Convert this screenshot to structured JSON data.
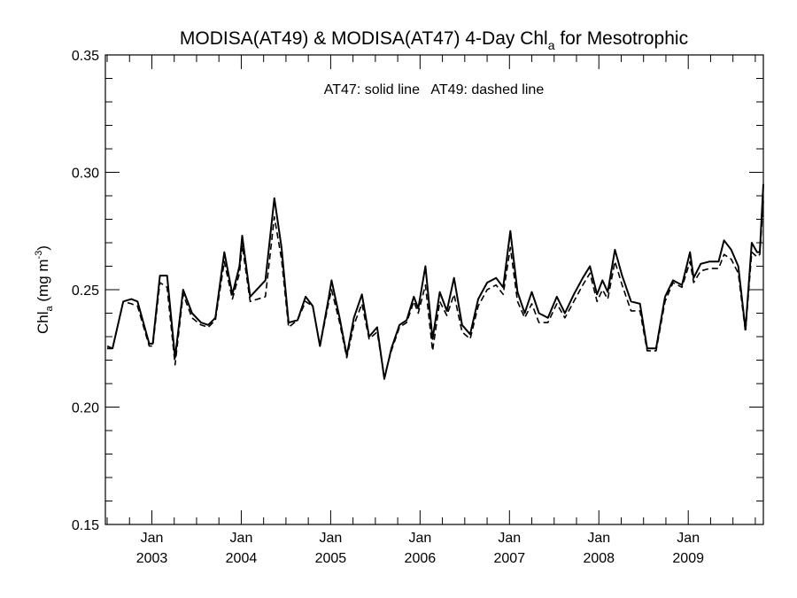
{
  "chart_data": {
    "type": "line",
    "title": {
      "prefix": "MODISA(AT49) & MODISA(AT47) 4-Day Chl",
      "subscript": "a",
      "suffix": " for Mesotrophic"
    },
    "annotation": "AT47: solid line   AT49: dashed line",
    "ylabel": {
      "prefix": "Chl",
      "subscript": "a",
      "unit_text": " (mg m",
      "superscript": "-3",
      "close": ")"
    },
    "ylim": [
      0.15,
      0.35
    ],
    "xlim": [
      2002.48,
      2009.84
    ],
    "y_ticks": [
      "0.15",
      "0.20",
      "0.25",
      "0.30",
      "0.35"
    ],
    "x_ticks": [
      {
        "x": 2003.0,
        "month": "Jan",
        "year": "2003"
      },
      {
        "x": 2004.0,
        "month": "Jan",
        "year": "2004"
      },
      {
        "x": 2005.0,
        "month": "Jan",
        "year": "2005"
      },
      {
        "x": 2006.0,
        "month": "Jan",
        "year": "2006"
      },
      {
        "x": 2007.0,
        "month": "Jan",
        "year": "2007"
      },
      {
        "x": 2008.0,
        "month": "Jan",
        "year": "2008"
      },
      {
        "x": 2009.0,
        "month": "Jan",
        "year": "2009"
      }
    ],
    "grid": false,
    "series": [
      {
        "name": "AT47",
        "style": "solid",
        "points": [
          [
            2002.5,
            0.225
          ],
          [
            2002.56,
            0.225
          ],
          [
            2002.68,
            0.245
          ],
          [
            2002.77,
            0.246
          ],
          [
            2002.84,
            0.245
          ],
          [
            2002.97,
            0.227
          ],
          [
            2003.01,
            0.227
          ],
          [
            2003.09,
            0.256
          ],
          [
            2003.17,
            0.256
          ],
          [
            2003.26,
            0.221
          ],
          [
            2003.35,
            0.25
          ],
          [
            2003.45,
            0.24
          ],
          [
            2003.55,
            0.236
          ],
          [
            2003.63,
            0.235
          ],
          [
            2003.71,
            0.238
          ],
          [
            2003.81,
            0.266
          ],
          [
            2003.9,
            0.248
          ],
          [
            2003.98,
            0.26
          ],
          [
            2004.01,
            0.273
          ],
          [
            2004.1,
            0.247
          ],
          [
            2004.27,
            0.254
          ],
          [
            2004.37,
            0.289
          ],
          [
            2004.45,
            0.268
          ],
          [
            2004.53,
            0.236
          ],
          [
            2004.63,
            0.237
          ],
          [
            2004.72,
            0.247
          ],
          [
            2004.8,
            0.243
          ],
          [
            2004.88,
            0.226
          ],
          [
            2004.98,
            0.247
          ],
          [
            2005.01,
            0.254
          ],
          [
            2005.1,
            0.238
          ],
          [
            2005.18,
            0.222
          ],
          [
            2005.26,
            0.238
          ],
          [
            2005.35,
            0.248
          ],
          [
            2005.43,
            0.23
          ],
          [
            2005.52,
            0.234
          ],
          [
            2005.6,
            0.212
          ],
          [
            2005.68,
            0.225
          ],
          [
            2005.77,
            0.235
          ],
          [
            2005.85,
            0.237
          ],
          [
            2005.93,
            0.247
          ],
          [
            2005.98,
            0.242
          ],
          [
            2006.06,
            0.26
          ],
          [
            2006.14,
            0.229
          ],
          [
            2006.22,
            0.249
          ],
          [
            2006.3,
            0.241
          ],
          [
            2006.38,
            0.255
          ],
          [
            2006.47,
            0.235
          ],
          [
            2006.56,
            0.231
          ],
          [
            2006.65,
            0.246
          ],
          [
            2006.75,
            0.253
          ],
          [
            2006.85,
            0.255
          ],
          [
            2006.93,
            0.251
          ],
          [
            2007.01,
            0.275
          ],
          [
            2007.09,
            0.249
          ],
          [
            2007.17,
            0.24
          ],
          [
            2007.25,
            0.249
          ],
          [
            2007.33,
            0.24
          ],
          [
            2007.43,
            0.238
          ],
          [
            2007.53,
            0.247
          ],
          [
            2007.62,
            0.24
          ],
          [
            2007.72,
            0.248
          ],
          [
            2007.82,
            0.255
          ],
          [
            2007.9,
            0.26
          ],
          [
            2007.98,
            0.248
          ],
          [
            2008.04,
            0.254
          ],
          [
            2008.1,
            0.249
          ],
          [
            2008.18,
            0.267
          ],
          [
            2008.26,
            0.256
          ],
          [
            2008.36,
            0.245
          ],
          [
            2008.46,
            0.244
          ],
          [
            2008.54,
            0.225
          ],
          [
            2008.64,
            0.225
          ],
          [
            2008.74,
            0.247
          ],
          [
            2008.83,
            0.254
          ],
          [
            2008.93,
            0.252
          ],
          [
            2009.02,
            0.266
          ],
          [
            2009.06,
            0.255
          ],
          [
            2009.14,
            0.261
          ],
          [
            2009.24,
            0.262
          ],
          [
            2009.34,
            0.262
          ],
          [
            2009.4,
            0.271
          ],
          [
            2009.48,
            0.267
          ],
          [
            2009.56,
            0.26
          ],
          [
            2009.64,
            0.233
          ],
          [
            2009.71,
            0.27
          ],
          [
            2009.77,
            0.266
          ],
          [
            2009.8,
            0.266
          ],
          [
            2009.84,
            0.295
          ]
        ]
      },
      {
        "name": "AT49",
        "style": "dashed",
        "points": [
          [
            2002.5,
            0.226
          ],
          [
            2002.56,
            0.225
          ],
          [
            2002.68,
            0.245
          ],
          [
            2002.77,
            0.244
          ],
          [
            2002.84,
            0.243
          ],
          [
            2002.97,
            0.226
          ],
          [
            2003.01,
            0.226
          ],
          [
            2003.09,
            0.253
          ],
          [
            2003.17,
            0.251
          ],
          [
            2003.26,
            0.218
          ],
          [
            2003.35,
            0.248
          ],
          [
            2003.45,
            0.238
          ],
          [
            2003.55,
            0.235
          ],
          [
            2003.63,
            0.234
          ],
          [
            2003.71,
            0.237
          ],
          [
            2003.81,
            0.262
          ],
          [
            2003.9,
            0.246
          ],
          [
            2003.98,
            0.257
          ],
          [
            2004.01,
            0.269
          ],
          [
            2004.1,
            0.245
          ],
          [
            2004.27,
            0.247
          ],
          [
            2004.37,
            0.281
          ],
          [
            2004.45,
            0.263
          ],
          [
            2004.53,
            0.234
          ],
          [
            2004.63,
            0.237
          ],
          [
            2004.72,
            0.245
          ],
          [
            2004.8,
            0.243
          ],
          [
            2004.88,
            0.226
          ],
          [
            2004.98,
            0.245
          ],
          [
            2005.01,
            0.25
          ],
          [
            2005.1,
            0.236
          ],
          [
            2005.18,
            0.221
          ],
          [
            2005.26,
            0.235
          ],
          [
            2005.35,
            0.244
          ],
          [
            2005.43,
            0.229
          ],
          [
            2005.52,
            0.232
          ],
          [
            2005.6,
            0.213
          ],
          [
            2005.68,
            0.224
          ],
          [
            2005.77,
            0.234
          ],
          [
            2005.85,
            0.236
          ],
          [
            2005.93,
            0.245
          ],
          [
            2005.98,
            0.24
          ],
          [
            2006.06,
            0.252
          ],
          [
            2006.14,
            0.224
          ],
          [
            2006.22,
            0.245
          ],
          [
            2006.3,
            0.239
          ],
          [
            2006.38,
            0.248
          ],
          [
            2006.47,
            0.232
          ],
          [
            2006.56,
            0.229
          ],
          [
            2006.65,
            0.243
          ],
          [
            2006.75,
            0.25
          ],
          [
            2006.85,
            0.252
          ],
          [
            2006.93,
            0.248
          ],
          [
            2007.01,
            0.268
          ],
          [
            2007.09,
            0.245
          ],
          [
            2007.17,
            0.238
          ],
          [
            2007.25,
            0.244
          ],
          [
            2007.33,
            0.236
          ],
          [
            2007.43,
            0.236
          ],
          [
            2007.53,
            0.244
          ],
          [
            2007.62,
            0.238
          ],
          [
            2007.72,
            0.245
          ],
          [
            2007.82,
            0.252
          ],
          [
            2007.9,
            0.257
          ],
          [
            2007.98,
            0.245
          ],
          [
            2008.04,
            0.25
          ],
          [
            2008.1,
            0.246
          ],
          [
            2008.18,
            0.262
          ],
          [
            2008.26,
            0.252
          ],
          [
            2008.36,
            0.241
          ],
          [
            2008.46,
            0.241
          ],
          [
            2008.54,
            0.224
          ],
          [
            2008.64,
            0.224
          ],
          [
            2008.74,
            0.245
          ],
          [
            2008.83,
            0.253
          ],
          [
            2008.93,
            0.251
          ],
          [
            2009.02,
            0.262
          ],
          [
            2009.06,
            0.253
          ],
          [
            2009.14,
            0.258
          ],
          [
            2009.24,
            0.259
          ],
          [
            2009.34,
            0.259
          ],
          [
            2009.4,
            0.265
          ],
          [
            2009.48,
            0.263
          ],
          [
            2009.56,
            0.257
          ],
          [
            2009.64,
            0.232
          ],
          [
            2009.71,
            0.266
          ],
          [
            2009.77,
            0.264
          ],
          [
            2009.8,
            0.265
          ],
          [
            2009.84,
            0.288
          ]
        ]
      }
    ]
  }
}
